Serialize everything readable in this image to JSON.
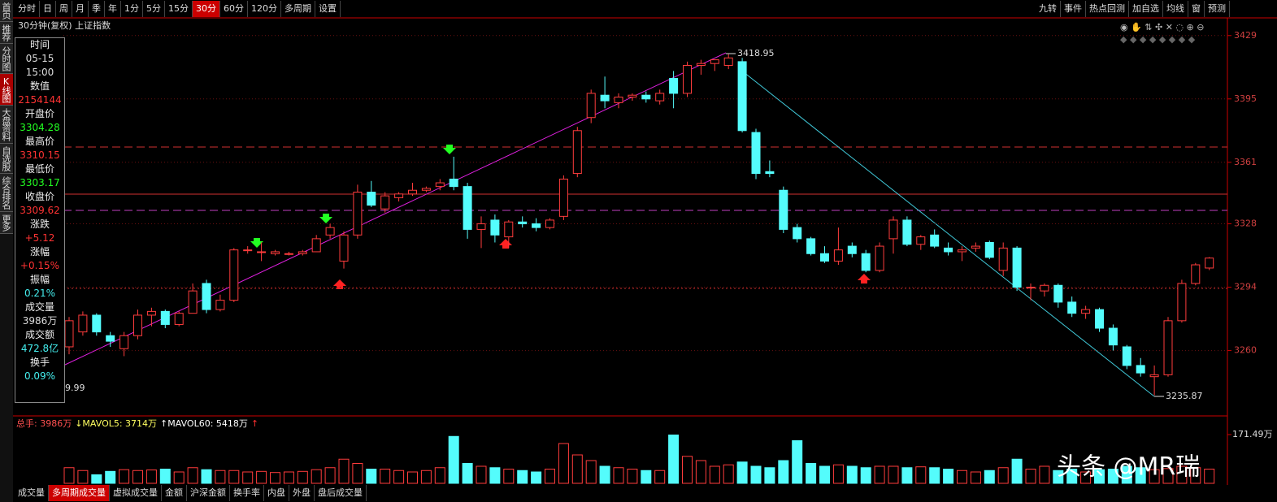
{
  "toolbar": {
    "left": [
      "分时",
      "日",
      "周",
      "月",
      "季",
      "年",
      "1分",
      "5分",
      "15分",
      "30分",
      "60分",
      "120分",
      "多周期",
      "设置"
    ],
    "active": "30分",
    "right": [
      "九转",
      "事件",
      "热点回测",
      "加自选",
      "均线",
      "窗",
      "预测"
    ]
  },
  "sidebar": [
    "首页",
    "推荐",
    "分时图",
    "K线图",
    "大盘资料",
    "自选股",
    "综合排名",
    "更多"
  ],
  "chart_title": "30分钟(复权)  上证指数",
  "info_panel": [
    [
      "时间",
      "05-15",
      "15:00"
    ],
    [
      "数值",
      "2154144"
    ],
    [
      "开盘价",
      "3304.28"
    ],
    [
      "最高价",
      "3310.15"
    ],
    [
      "最低价",
      "3303.17"
    ],
    [
      "收盘价",
      "3309.62"
    ],
    [
      "涨跌",
      "+5.12"
    ],
    [
      "涨幅",
      "+0.15%"
    ],
    [
      "振幅",
      "0.21%"
    ],
    [
      "成交量",
      "3986万"
    ],
    [
      "成交额",
      "472.8亿"
    ],
    [
      "换手",
      "0.09%"
    ]
  ],
  "partial_label": "9.99",
  "annotations": {
    "high": "3418.95",
    "low": "3235.87"
  },
  "kline": {
    "type": "candlestick",
    "ylim": [
      3228,
      3435
    ],
    "yticks": [
      3429,
      3395,
      3361,
      3328,
      3294,
      3260
    ],
    "up_color": "#ff3c3c",
    "down_color": "#54fcfc",
    "candles": [
      [
        3262,
        3278,
        3258,
        3276
      ],
      [
        3270,
        3281,
        3268,
        3279
      ],
      [
        3279,
        3280,
        3268,
        3270
      ],
      [
        3268,
        3270,
        3262,
        3265
      ],
      [
        3261,
        3270,
        3257,
        3268
      ],
      [
        3268,
        3282,
        3266,
        3279
      ],
      [
        3279,
        3283,
        3273,
        3281
      ],
      [
        3281,
        3282,
        3272,
        3274
      ],
      [
        3274,
        3281,
        3273,
        3280
      ],
      [
        3280,
        3296,
        3280,
        3292
      ],
      [
        3296,
        3298,
        3280,
        3282
      ],
      [
        3282,
        3290,
        3281,
        3287
      ],
      [
        3287,
        3315,
        3286,
        3314
      ],
      [
        3314,
        3316,
        3312,
        3314
      ],
      [
        3313,
        3318,
        3308,
        3313
      ],
      [
        3312,
        3314,
        3311,
        3313
      ],
      [
        3312,
        3313,
        3311,
        3312
      ],
      [
        3312,
        3314,
        3311,
        3313
      ],
      [
        3313,
        3322,
        3313,
        3320
      ],
      [
        3322,
        3328,
        3320,
        3326
      ],
      [
        3308,
        3324,
        3304,
        3322
      ],
      [
        3322,
        3349,
        3320,
        3345
      ],
      [
        3345,
        3351,
        3337,
        3338
      ],
      [
        3336,
        3345,
        3334,
        3343
      ],
      [
        3342,
        3345,
        3340,
        3344
      ],
      [
        3344,
        3350,
        3343,
        3346
      ],
      [
        3346,
        3348,
        3345,
        3347
      ],
      [
        3348,
        3352,
        3346,
        3350
      ],
      [
        3352,
        3364,
        3346,
        3348
      ],
      [
        3348,
        3350,
        3320,
        3325
      ],
      [
        3325,
        3332,
        3315,
        3328
      ],
      [
        3330,
        3333,
        3318,
        3322
      ],
      [
        3321,
        3330,
        3315,
        3329
      ],
      [
        3329,
        3332,
        3326,
        3328
      ],
      [
        3328,
        3331,
        3324,
        3326
      ],
      [
        3326,
        3331,
        3325,
        3330
      ],
      [
        3332,
        3354,
        3330,
        3352
      ],
      [
        3355,
        3380,
        3353,
        3378
      ],
      [
        3385,
        3400,
        3382,
        3398
      ],
      [
        3397,
        3407,
        3390,
        3394
      ],
      [
        3393,
        3398,
        3390,
        3396
      ],
      [
        3396,
        3398,
        3394,
        3397
      ],
      [
        3397,
        3399,
        3393,
        3395
      ],
      [
        3394,
        3400,
        3392,
        3398
      ],
      [
        3406,
        3410,
        3390,
        3398
      ],
      [
        3398,
        3415,
        3396,
        3413
      ],
      [
        3413,
        3416,
        3408,
        3414
      ],
      [
        3414,
        3416,
        3410,
        3416
      ],
      [
        3413,
        3419,
        3411,
        3417
      ],
      [
        3415,
        3417,
        3377,
        3378
      ],
      [
        3377,
        3379,
        3352,
        3355
      ],
      [
        3356,
        3362,
        3353,
        3355
      ],
      [
        3346,
        3348,
        3323,
        3325
      ],
      [
        3326,
        3328,
        3318,
        3320
      ],
      [
        3320,
        3321,
        3311,
        3312
      ],
      [
        3312,
        3316,
        3307,
        3308
      ],
      [
        3308,
        3326,
        3306,
        3314
      ],
      [
        3316,
        3318,
        3310,
        3312
      ],
      [
        3312,
        3314,
        3302,
        3303
      ],
      [
        3303,
        3318,
        3302,
        3316
      ],
      [
        3320,
        3332,
        3312,
        3330
      ],
      [
        3330,
        3332,
        3316,
        3317
      ],
      [
        3317,
        3322,
        3314,
        3321
      ],
      [
        3322,
        3325,
        3315,
        3316
      ],
      [
        3315,
        3318,
        3311,
        3313
      ],
      [
        3313,
        3316,
        3308,
        3314
      ],
      [
        3315,
        3318,
        3313,
        3316
      ],
      [
        3318,
        3319,
        3309,
        3310
      ],
      [
        3303,
        3318,
        3300,
        3315
      ],
      [
        3315,
        3316,
        3292,
        3294
      ],
      [
        3294,
        3296,
        3287,
        3294
      ],
      [
        3292,
        3296,
        3289,
        3295
      ],
      [
        3295,
        3296,
        3283,
        3286
      ],
      [
        3286,
        3289,
        3278,
        3280
      ],
      [
        3280,
        3284,
        3277,
        3282
      ],
      [
        3282,
        3283,
        3270,
        3272
      ],
      [
        3272,
        3274,
        3260,
        3263
      ],
      [
        3262,
        3263,
        3250,
        3252
      ],
      [
        3252,
        3256,
        3246,
        3248
      ],
      [
        3246,
        3252,
        3236,
        3247
      ],
      [
        3247,
        3278,
        3246,
        3276
      ],
      [
        3276,
        3298,
        3275,
        3296
      ],
      [
        3296,
        3307,
        3295,
        3306
      ],
      [
        3304.28,
        3310.15,
        3303.17,
        3309.62
      ]
    ],
    "volumes": [
      55,
      45,
      30,
      42,
      48,
      45,
      47,
      50,
      40,
      55,
      48,
      45,
      45,
      40,
      42,
      38,
      40,
      42,
      48,
      55,
      85,
      70,
      50,
      50,
      45,
      40,
      45,
      55,
      165,
      70,
      60,
      55,
      50,
      45,
      40,
      50,
      140,
      100,
      80,
      60,
      55,
      50,
      45,
      45,
      170,
      95,
      80,
      60,
      65,
      75,
      60,
      55,
      80,
      150,
      70,
      60,
      65,
      60,
      55,
      60,
      60,
      55,
      58,
      55,
      50,
      45,
      40,
      45,
      55,
      85,
      50,
      60,
      45,
      50,
      40,
      48,
      50,
      60,
      55,
      48,
      52,
      60,
      55,
      50
    ],
    "vylim": [
      0,
      171.49
    ],
    "vyticks": [
      {
        "value": 171.49,
        "label": "171.49万"
      }
    ]
  },
  "volume_legend": [
    "总手: 3986万",
    "↓MAVOL5: 3714万",
    "↑MAVOL60: 5418万",
    "↑"
  ],
  "bottom_tabs": {
    "items": [
      "成交量",
      "多周期成交量",
      "虚拟成交量",
      "金额",
      "沪深金额",
      "换手率",
      "内盘",
      "外盘",
      "盘后成交量"
    ],
    "active": "多周期成交量"
  },
  "watermark": "头条 @MR瑞"
}
